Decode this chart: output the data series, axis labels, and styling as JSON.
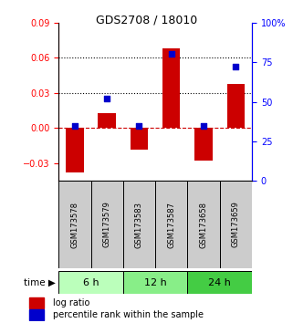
{
  "title": "GDS2708 / 18010",
  "samples": [
    "GSM173578",
    "GSM173579",
    "GSM173583",
    "GSM173587",
    "GSM173658",
    "GSM173659"
  ],
  "log_ratio": [
    -0.038,
    0.013,
    -0.018,
    0.068,
    -0.028,
    0.038
  ],
  "percentile_rank": [
    35,
    52,
    35,
    80,
    35,
    72
  ],
  "time_groups": [
    {
      "label": "6 h",
      "samples": [
        0,
        1
      ],
      "color": "#bbffbb"
    },
    {
      "label": "12 h",
      "samples": [
        2,
        3
      ],
      "color": "#88ee88"
    },
    {
      "label": "24 h",
      "samples": [
        4,
        5
      ],
      "color": "#44cc44"
    }
  ],
  "ylim_left": [
    -0.045,
    0.09
  ],
  "ylim_right": [
    0,
    100
  ],
  "yticks_left": [
    -0.03,
    0.0,
    0.03,
    0.06,
    0.09
  ],
  "yticks_right": [
    0,
    25,
    50,
    75,
    100
  ],
  "bar_color": "#cc0000",
  "dot_color": "#0000cc",
  "grid_lines": [
    0.03,
    0.06
  ],
  "zero_line": 0.0,
  "background_color": "#ffffff",
  "plot_bg_color": "#ffffff",
  "label_bg_color": "#cccccc",
  "title_fontsize": 9,
  "tick_fontsize": 7,
  "sample_fontsize": 6,
  "timebar_fontsize": 8,
  "legend_fontsize": 7
}
